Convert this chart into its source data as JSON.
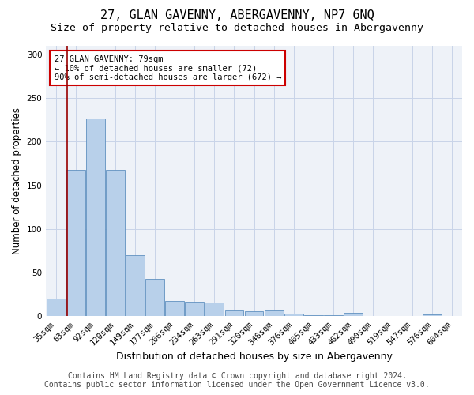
{
  "title": "27, GLAN GAVENNY, ABERGAVENNY, NP7 6NQ",
  "subtitle": "Size of property relative to detached houses in Abergavenny",
  "xlabel": "Distribution of detached houses by size in Abergavenny",
  "ylabel": "Number of detached properties",
  "footer_line1": "Contains HM Land Registry data © Crown copyright and database right 2024.",
  "footer_line2": "Contains public sector information licensed under the Open Government Licence v3.0.",
  "categories": [
    "35sqm",
    "63sqm",
    "92sqm",
    "120sqm",
    "149sqm",
    "177sqm",
    "206sqm",
    "234sqm",
    "263sqm",
    "291sqm",
    "320sqm",
    "348sqm",
    "376sqm",
    "405sqm",
    "433sqm",
    "462sqm",
    "490sqm",
    "519sqm",
    "547sqm",
    "576sqm",
    "604sqm"
  ],
  "values": [
    20,
    168,
    226,
    168,
    70,
    43,
    18,
    17,
    16,
    7,
    6,
    7,
    3,
    1,
    1,
    4,
    0,
    0,
    0,
    2,
    0
  ],
  "bar_color": "#b8d0ea",
  "bar_edge_color": "#6090c0",
  "vline_x": 0.58,
  "vline_color": "#990000",
  "annotation_text": "27 GLAN GAVENNY: 79sqm\n← 10% of detached houses are smaller (72)\n90% of semi-detached houses are larger (672) →",
  "annotation_box_edge_color": "#cc0000",
  "ylim": [
    0,
    310
  ],
  "yticks": [
    0,
    50,
    100,
    150,
    200,
    250,
    300
  ],
  "grid_color": "#c8d4e8",
  "bg_color": "#eef2f8",
  "title_fontsize": 11,
  "subtitle_fontsize": 9.5,
  "xlabel_fontsize": 9,
  "ylabel_fontsize": 8.5,
  "tick_fontsize": 7.5,
  "footer_fontsize": 7,
  "annot_fontsize": 7.5
}
